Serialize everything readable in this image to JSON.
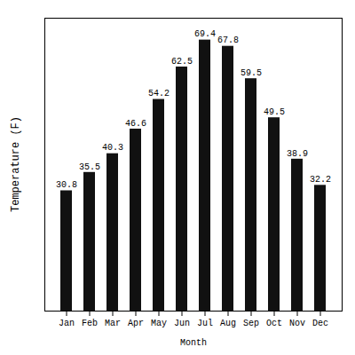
{
  "chart_data": {
    "type": "bar",
    "categories": [
      "Jan",
      "Feb",
      "Mar",
      "Apr",
      "May",
      "Jun",
      "Jul",
      "Aug",
      "Sep",
      "Oct",
      "Nov",
      "Dec"
    ],
    "values": [
      30.8,
      35.5,
      40.3,
      46.6,
      54.2,
      62.5,
      69.4,
      67.8,
      59.5,
      49.5,
      38.9,
      32.2
    ],
    "color": "#111111",
    "xlabel": "Month",
    "ylabel": "Temperature (F)",
    "ylim": [
      0,
      75
    ],
    "data_labels": true,
    "tick_labels": "x",
    "grid": false
  }
}
